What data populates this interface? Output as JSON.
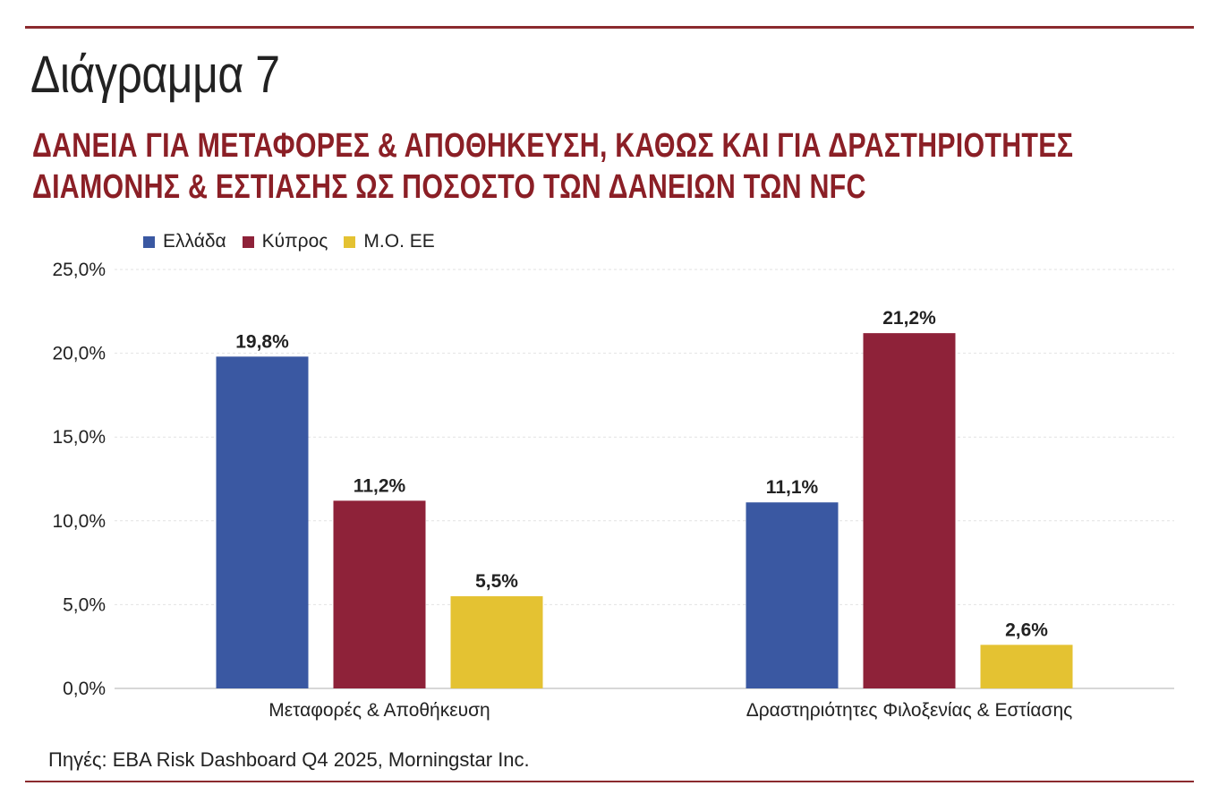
{
  "header": {
    "diagram_label": "Διάγραμμα 7",
    "title_line1": "ΔΑΝΕΙΑ ΓΙΑ ΜΕΤΑΦΟΡΕΣ & ΑΠΟΘΗΚΕΥΣΗ, ΚΑΘΩΣ ΚΑΙ ΓΙΑ ΔΡΑΣΤΗΡΙΟΤΗΤΕΣ",
    "title_line2": "ΔΙΑΜΟΝΗΣ & ΕΣΤΙΑΣΗΣ ΩΣ ΠΟΣΟΣΤΟ ΤΩΝ ΔΑΝΕΙΩΝ ΤΩΝ NFC"
  },
  "footer": {
    "source": "Πηγές: EBA Risk Dashboard Q4 2025, Morningstar Inc."
  },
  "colors": {
    "rule": "#8b2a2e",
    "title": "#8b1f26",
    "greece": "#3a58a2",
    "cyprus": "#8e2239",
    "eu_avg": "#e4c232"
  },
  "chart_data": {
    "type": "bar",
    "title": "",
    "xlabel": "",
    "ylabel": "",
    "categories": [
      "Μεταφορές &  Αποθήκευση",
      "Δραστηριότητες Φιλοξενίας & Εστίασης"
    ],
    "series": [
      {
        "name": "Ελλάδα",
        "values": [
          19.8,
          11.1
        ],
        "labels": [
          "19,8%",
          "11,1%"
        ],
        "color": "#3a58a2"
      },
      {
        "name": "Κύπρος",
        "values": [
          11.2,
          21.2
        ],
        "labels": [
          "11,2%",
          "21,2%"
        ],
        "color": "#8e2239"
      },
      {
        "name": "Μ.Ο. ΕΕ",
        "values": [
          5.5,
          2.6
        ],
        "labels": [
          "5,5%",
          "2,6%"
        ],
        "color": "#e4c232"
      }
    ],
    "ylim": [
      0,
      25
    ],
    "yticks": [
      0,
      5,
      10,
      15,
      20,
      25
    ],
    "ytick_labels": [
      "0,0%",
      "5,0%",
      "10,0%",
      "15,0%",
      "20,0%",
      "25,0%"
    ],
    "grid": true,
    "legend": "top-left"
  }
}
